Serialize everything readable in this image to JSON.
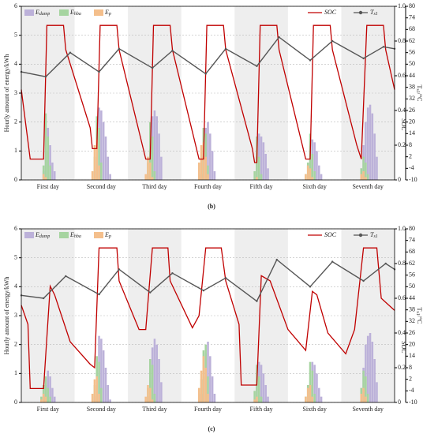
{
  "chart_data": [
    {
      "type": "bar",
      "label": "(b)",
      "categories": [
        "First day",
        "Second day",
        "Third day",
        "Fourth day",
        "Fifth day",
        "Sixth day",
        "Seventh day"
      ],
      "ylabel": "Hourly amount of energy/kWh",
      "y2label": "SOC",
      "y3label": "Ts1/°C",
      "xlim": [
        0,
        168
      ],
      "ylim": [
        0,
        6
      ],
      "yticks": [
        0,
        1,
        2,
        3,
        4,
        5,
        6
      ],
      "y2lim": [
        0,
        1
      ],
      "y2ticks": [
        0,
        0.2,
        0.4,
        0.6,
        0.8,
        {
          "value": 1,
          "label": "1.0"
        }
      ],
      "y3lim": [
        -10,
        80
      ],
      "y3ticks": [
        -10,
        -4,
        2,
        8,
        14,
        20,
        26,
        32,
        38,
        44,
        50,
        56,
        62,
        68,
        74,
        80
      ],
      "grid": true,
      "x": [
        8,
        9,
        10,
        11,
        12,
        13,
        14,
        15,
        16,
        32,
        33,
        34,
        35,
        36,
        37,
        38,
        39,
        40,
        56,
        57,
        58,
        59,
        60,
        61,
        62,
        63,
        64,
        80,
        81,
        82,
        83,
        84,
        85,
        86,
        87,
        88,
        104,
        105,
        106,
        107,
        108,
        109,
        110,
        111,
        112,
        128,
        129,
        130,
        131,
        132,
        133,
        134,
        135,
        136,
        152,
        153,
        154,
        155,
        156,
        157,
        158,
        159,
        160
      ],
      "series": [
        {
          "name": "Edump",
          "color": "#bcb1d9",
          "values": [
            0,
            0,
            0.3,
            1.0,
            1.8,
            1.2,
            0.6,
            0.3,
            0,
            0,
            0.3,
            1.2,
            2.5,
            2.4,
            2.0,
            1.5,
            0.8,
            0.2,
            0,
            0.2,
            1.0,
            2.2,
            2.4,
            2.2,
            1.6,
            0.8,
            0,
            0,
            0.2,
            0.8,
            1.8,
            2.0,
            1.6,
            1.0,
            0.3,
            0,
            0,
            0,
            0.8,
            1.6,
            1.5,
            1.3,
            0.9,
            0.4,
            0,
            0,
            0.2,
            0.7,
            1.4,
            1.3,
            1.0,
            0.5,
            0.2,
            0,
            0,
            0.4,
            1.2,
            2.0,
            2.5,
            2.6,
            2.3,
            1.6,
            0.8
          ]
        },
        {
          "name": "Ehba",
          "color": "#a6d4a0",
          "values": [
            0,
            0,
            0.5,
            2.3,
            1.5,
            0.5,
            0,
            0,
            0,
            0,
            0.8,
            2.2,
            1.8,
            0.6,
            0,
            0,
            0,
            0,
            0,
            0.6,
            2.0,
            1.5,
            0.3,
            0,
            0,
            0,
            0,
            0.2,
            0.8,
            1.8,
            1.6,
            0.5,
            0,
            0,
            0,
            0,
            0,
            0.3,
            1.5,
            0.8,
            0.2,
            0,
            0,
            0,
            0,
            0.2,
            0.6,
            1.6,
            0.9,
            0.3,
            0,
            0,
            0,
            0,
            0,
            0.4,
            0.8,
            0.6,
            0.2,
            0,
            0,
            0,
            0
          ]
        },
        {
          "name": "Ep",
          "color": "#f4bf8c",
          "values": [
            0,
            0,
            0.2,
            0.1,
            0,
            0,
            0,
            0,
            0,
            0.3,
            1.2,
            1.4,
            0.5,
            0,
            0,
            0,
            0,
            0,
            0.2,
            0.8,
            0.6,
            0.1,
            0,
            0,
            0,
            0,
            0,
            0.6,
            1.2,
            1.3,
            0.8,
            0.2,
            0,
            0,
            0,
            0,
            0,
            0,
            0.1,
            0,
            0,
            0,
            0,
            0,
            0,
            0.2,
            0.5,
            0.4,
            0.1,
            0,
            0,
            0,
            0,
            0,
            0,
            0.2,
            0.3,
            0.1,
            0,
            0,
            0,
            0,
            0
          ]
        },
        {
          "name": "SOC",
          "color": "#c00000",
          "type": "line",
          "axis": "y2",
          "x": [
            0,
            4,
            10,
            11.5,
            19,
            20,
            31,
            32,
            34,
            35.5,
            43,
            44,
            56,
            58,
            59.5,
            67,
            68,
            80,
            82,
            83.5,
            91,
            92,
            104,
            105,
            106,
            107.5,
            115,
            116,
            128,
            130,
            131.5,
            139,
            140,
            151,
            153,
            155.5,
            163,
            164,
            168
          ],
          "values": [
            0.52,
            0.12,
            0.12,
            0.89,
            0.89,
            0.75,
            0.3,
            0.18,
            0.18,
            0.89,
            0.89,
            0.75,
            0.12,
            0.12,
            0.89,
            0.89,
            0.75,
            0.12,
            0.12,
            0.89,
            0.89,
            0.75,
            0.18,
            0.1,
            0.1,
            0.89,
            0.89,
            0.75,
            0.12,
            0.12,
            0.89,
            0.89,
            0.75,
            0.2,
            0.12,
            0.89,
            0.89,
            0.75,
            0.52
          ]
        },
        {
          "name": "Ts1",
          "color": "#555555",
          "type": "line",
          "axis": "y3",
          "markers": true,
          "x": [
            0,
            11,
            22,
            35,
            44,
            59,
            68,
            83,
            92,
            106,
            116,
            130,
            140,
            154,
            163,
            168
          ],
          "values": [
            46,
            43.5,
            56,
            46,
            58,
            48,
            57,
            45,
            58,
            49,
            64,
            52,
            62,
            53,
            59,
            58
          ]
        }
      ]
    },
    {
      "type": "bar",
      "label": "(c)",
      "categories": [
        "First day",
        "Second day",
        "Third day",
        "Fourth day",
        "Fifth day",
        "Sixth day",
        "Seventh day"
      ],
      "ylabel": "Hourly amount of energy/kWh",
      "y2label": "SOC",
      "y3label": "Ts1/°C",
      "xlim": [
        0,
        168
      ],
      "ylim": [
        0,
        6
      ],
      "yticks": [
        0,
        1,
        2,
        3,
        4,
        5,
        6
      ],
      "y2lim": [
        0,
        1
      ],
      "y2ticks": [
        0,
        0.2,
        0.4,
        0.6,
        0.8,
        {
          "value": 1,
          "label": "1.0"
        }
      ],
      "y3lim": [
        -10,
        80
      ],
      "y3ticks": [
        -10,
        -4,
        2,
        8,
        14,
        20,
        26,
        32,
        38,
        44,
        50,
        56,
        62,
        68,
        74,
        80
      ],
      "grid": true,
      "x": [
        8,
        9,
        10,
        11,
        12,
        13,
        14,
        15,
        16,
        32,
        33,
        34,
        35,
        36,
        37,
        38,
        39,
        40,
        56,
        57,
        58,
        59,
        60,
        61,
        62,
        63,
        64,
        80,
        81,
        82,
        83,
        84,
        85,
        86,
        87,
        88,
        104,
        105,
        106,
        107,
        108,
        109,
        110,
        111,
        112,
        128,
        129,
        130,
        131,
        132,
        133,
        134,
        135,
        136,
        152,
        153,
        154,
        155,
        156,
        157,
        158,
        159,
        160
      ],
      "series": [
        {
          "name": "Edump",
          "color": "#bcb1d9",
          "values": [
            0,
            0,
            0.2,
            0.6,
            1.1,
            0.9,
            0.5,
            0.2,
            0,
            0,
            0.2,
            1.0,
            2.3,
            2.2,
            1.8,
            1.2,
            0.6,
            0.1,
            0,
            0.2,
            0.9,
            1.9,
            2.2,
            2.0,
            1.5,
            0.7,
            0,
            0,
            0.3,
            0.9,
            1.7,
            2.1,
            1.6,
            0.9,
            0.3,
            0,
            0,
            0,
            0.6,
            1.4,
            1.3,
            1.0,
            0.6,
            0.2,
            0,
            0,
            0.2,
            0.6,
            1.4,
            1.3,
            1.0,
            0.5,
            0.2,
            0,
            0,
            0.4,
            1.2,
            2.0,
            2.3,
            2.4,
            2.1,
            1.5,
            0.7
          ]
        },
        {
          "name": "Ehba",
          "color": "#a6d4a0",
          "values": [
            0,
            0.2,
            0.6,
            0.9,
            0.5,
            0.2,
            0,
            0,
            0,
            0,
            0.6,
            1.6,
            1.4,
            0.5,
            0,
            0,
            0,
            0,
            0,
            0.5,
            1.5,
            1.3,
            0.3,
            0,
            0,
            0,
            0,
            0.2,
            0.8,
            1.8,
            2.0,
            0.9,
            0,
            0,
            0,
            0,
            0,
            0.4,
            1.3,
            0.9,
            0.2,
            0,
            0,
            0,
            0,
            0.2,
            0.6,
            1.4,
            1.1,
            0.3,
            0,
            0,
            0,
            0,
            0,
            0.5,
            1.1,
            0.9,
            0.3,
            0,
            0,
            0,
            0
          ]
        },
        {
          "name": "Ep",
          "color": "#f4bf8c",
          "values": [
            0,
            0.1,
            0.3,
            0.2,
            0,
            0,
            0,
            0,
            0,
            0.3,
            0.8,
            0.9,
            0.3,
            0,
            0,
            0,
            0,
            0,
            0.2,
            0.6,
            0.5,
            0.1,
            0,
            0,
            0,
            0,
            0,
            0.5,
            1.1,
            1.6,
            1.2,
            0.3,
            0,
            0,
            0,
            0,
            0,
            0.1,
            0.2,
            0,
            0,
            0,
            0,
            0,
            0,
            0.2,
            0.5,
            0.6,
            0.2,
            0,
            0,
            0,
            0,
            0,
            0,
            0.3,
            0.5,
            0.2,
            0,
            0,
            0,
            0,
            0
          ]
        },
        {
          "name": "SOC",
          "color": "#c00000",
          "type": "line",
          "axis": "y2",
          "x": [
            0,
            3,
            4,
            10,
            13,
            15,
            22,
            31,
            33,
            35,
            43,
            44,
            53,
            56,
            59,
            66,
            67,
            77,
            80,
            83,
            90,
            92,
            98,
            99,
            106,
            108,
            112,
            120,
            128,
            131,
            133,
            138,
            146,
            150,
            154,
            160,
            162,
            168
          ],
          "values": [
            0.56,
            0.45,
            0.08,
            0.08,
            0.67,
            0.62,
            0.35,
            0.22,
            0.2,
            0.89,
            0.89,
            0.7,
            0.42,
            0.42,
            0.89,
            0.89,
            0.7,
            0.43,
            0.5,
            0.89,
            0.89,
            0.7,
            0.45,
            0.1,
            0.1,
            0.73,
            0.7,
            0.42,
            0.3,
            0.64,
            0.62,
            0.4,
            0.28,
            0.42,
            0.89,
            0.89,
            0.6,
            0.53
          ]
        },
        {
          "name": "Ts1",
          "color": "#555555",
          "type": "line",
          "axis": "y3",
          "markers": true,
          "x": [
            0,
            10,
            20,
            35,
            44,
            58,
            68,
            82,
            92,
            106,
            115,
            130,
            140,
            154,
            164,
            168
          ],
          "values": [
            45.5,
            44,
            55.5,
            46,
            59,
            47,
            57,
            48,
            54.5,
            42.5,
            64,
            50,
            63,
            53,
            62,
            59
          ]
        }
      ]
    }
  ]
}
